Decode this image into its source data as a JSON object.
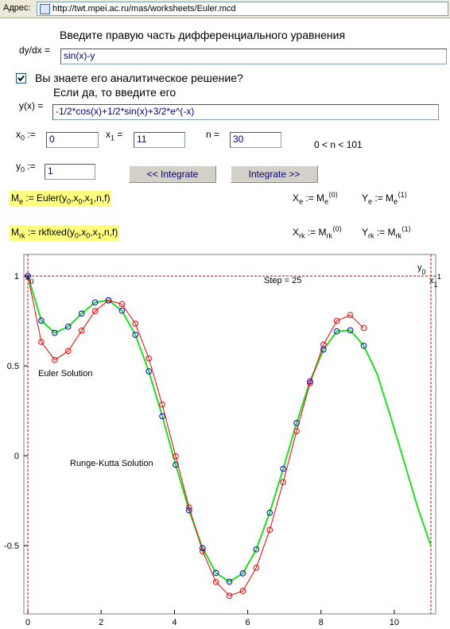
{
  "address_bar": {
    "label": "Адрес:",
    "url": "http://twt.mpei.ac.ru/mas/worksheets/Euler.mcd"
  },
  "form": {
    "prompt": "Введите правую часть дифференциального уравнения",
    "dydx_label": "dy/dx =",
    "dydx_value": "sin(x)-y",
    "checkbox_label": "Вы знаете его аналитическое решение?",
    "checked": true,
    "solution_prompt": "Если да, то введите его",
    "yx_label": "y(x) =",
    "yx_value": "-1/2*cos(x)+1/2*sin(x)+3/2*e^(-x)",
    "x0_label": [
      {
        "t": "x"
      },
      {
        "sub": "0"
      },
      {
        "t": " :="
      }
    ],
    "x0_value": "0",
    "x1_label": [
      {
        "t": "x"
      },
      {
        "sub": "1"
      },
      {
        "t": " ="
      }
    ],
    "x1_value": "11",
    "n_label": [
      {
        "t": "n  ="
      }
    ],
    "n_value": "30",
    "n_range": "0 < n < 101",
    "y0_label": [
      {
        "t": "y"
      },
      {
        "sub": "0"
      },
      {
        "t": " :="
      }
    ],
    "y0_value": "1",
    "buttons": [
      "<< Integrate",
      "Integrate >>"
    ]
  },
  "formulas": [
    {
      "highlight": true,
      "tokens": [
        {
          "t": "M"
        },
        {
          "sub": "e"
        },
        {
          "t": " := Euler(y"
        },
        {
          "sub": "0"
        },
        {
          "t": ",x"
        },
        {
          "sub": "0"
        },
        {
          "t": ",x"
        },
        {
          "sub": "1"
        },
        {
          "t": ",n,f)"
        }
      ]
    },
    {
      "highlight": false,
      "tokens": [
        {
          "t": "X"
        },
        {
          "sub": "e"
        },
        {
          "t": " := M"
        },
        {
          "sub": "e"
        },
        {
          "sup": "⟨0⟩"
        }
      ]
    },
    {
      "highlight": false,
      "tokens": [
        {
          "t": "Y"
        },
        {
          "sub": "e"
        },
        {
          "t": " := M"
        },
        {
          "sub": "e"
        },
        {
          "sup": "⟨1⟩"
        }
      ]
    },
    {
      "highlight": true,
      "tokens": [
        {
          "t": "M"
        },
        {
          "sub": "rk"
        },
        {
          "t": " :=  rkfixed(y"
        },
        {
          "sub": "0"
        },
        {
          "t": ",x"
        },
        {
          "sub": "0"
        },
        {
          "t": ",x"
        },
        {
          "sub": "1"
        },
        {
          "t": ",n,f)"
        }
      ]
    },
    {
      "highlight": false,
      "tokens": [
        {
          "t": "X"
        },
        {
          "sub": "rk"
        },
        {
          "t": " := M"
        },
        {
          "sub": "rk"
        },
        {
          "sup": "⟨0⟩"
        }
      ]
    },
    {
      "highlight": false,
      "tokens": [
        {
          "t": "Y"
        },
        {
          "sub": "rk"
        },
        {
          "t": " := M"
        },
        {
          "sub": "rk"
        },
        {
          "sup": "⟨1⟩"
        }
      ]
    }
  ],
  "chart_data": {
    "type": "line",
    "x": [
      0,
      0.367,
      0.733,
      1.1,
      1.467,
      1.833,
      2.2,
      2.567,
      2.933,
      3.3,
      3.667,
      4.033,
      4.4,
      4.767,
      5.133,
      5.5,
      5.867,
      6.233,
      6.6,
      6.967,
      7.333,
      7.7,
      8.067,
      8.433,
      8.8,
      9.167,
      9.533,
      9.9,
      10.267,
      10.633,
      11
    ],
    "series": [
      {
        "color": "#22dd22",
        "line": true,
        "marker": false,
        "values": [
          1,
          0.752,
          0.684,
          0.718,
          0.791,
          0.853,
          0.865,
          0.807,
          0.673,
          0.47,
          0.22,
          -0.05,
          -0.304,
          -0.514,
          -0.652,
          -0.701,
          -0.654,
          -0.521,
          -0.317,
          -0.073,
          0.182,
          0.414,
          0.591,
          0.692,
          0.698,
          0.612,
          0.454,
          0.217,
          -0.032,
          -0.284,
          -0.502
        ]
      },
      {
        "color": "#ee0000",
        "line": true,
        "marker": true,
        "values": [
          1,
          0.633,
          0.533,
          0.583,
          0.696,
          0.805,
          0.864,
          0.844,
          0.735,
          0.542,
          0.285,
          -0.003,
          -0.288,
          -0.531,
          -0.703,
          -0.779,
          -0.752,
          -0.623,
          -0.413,
          -0.147,
          0.137,
          0.404,
          0.618,
          0.751,
          0.783,
          0.711,
          null,
          null,
          null,
          null,
          null
        ]
      },
      {
        "color": "#0000cc",
        "line": false,
        "marker": true,
        "values": [
          1,
          0.752,
          0.684,
          0.718,
          0.791,
          0.853,
          0.865,
          0.807,
          0.673,
          0.47,
          0.22,
          -0.05,
          -0.304,
          -0.514,
          -0.652,
          -0.701,
          -0.654,
          -0.521,
          -0.317,
          -0.073,
          0.182,
          0.414,
          0.591,
          0.692,
          0.698,
          0.612,
          null,
          null,
          null,
          null,
          null
        ]
      }
    ],
    "xlim": [
      -0.11,
      11.13
    ],
    "ylim": [
      -0.88,
      1.12
    ],
    "xticks": [
      0,
      2,
      4,
      6,
      8,
      10
    ],
    "yticks": [
      -0.5,
      0,
      0.5,
      1
    ],
    "ref_lines": {
      "color": "#cc0000",
      "x": [
        0,
        11
      ],
      "y": [
        1
      ]
    },
    "annotations": [
      [
        {
          "t": "x"
        },
        {
          "sub": "0"
        }
      ],
      [
        {
          "t": "Step = 25"
        }
      ],
      [
        {
          "t": "y"
        },
        {
          "sub": "0"
        }
      ],
      [
        {
          "t": "x"
        },
        {
          "sub": "1"
        },
        {
          "sup": "1"
        }
      ],
      [
        {
          "t": "Euler Solution"
        }
      ],
      [
        {
          "t": "Runge-Kutta Solution"
        }
      ]
    ]
  }
}
